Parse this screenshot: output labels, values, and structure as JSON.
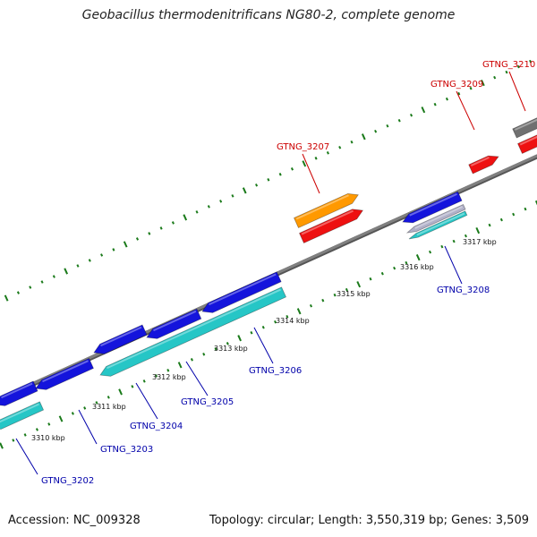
{
  "title": "Geobacillus thermodenitrificans NG80-2, complete genome",
  "footer": {
    "accession": "Accession: NC_009328",
    "summary": "Topology: circular; Length: 3,550,319 bp; Genes: 3,509"
  },
  "colors": {
    "backbone": "#808080",
    "tick": "#1a7a1a",
    "plus_label": "#cc0000",
    "minus_label": "#0000aa",
    "blue": "#1414dc",
    "cyan": "#26c6c6",
    "red": "#ee1111",
    "orange": "#ff9900",
    "gray": "#707070",
    "lightgray": "#b0b0c8"
  },
  "scale": {
    "unit": "kbp",
    "labels": [
      {
        "kbp": 3310,
        "text": "3310 kbp"
      },
      {
        "kbp": 3311,
        "text": "3311 kbp"
      },
      {
        "kbp": 3312,
        "text": "3312 kbp"
      },
      {
        "kbp": 3313,
        "text": "3313 kbp"
      },
      {
        "kbp": 3314,
        "text": "3314 kbp"
      },
      {
        "kbp": 3315,
        "text": "3315 kbp"
      },
      {
        "kbp": 3316,
        "text": "3316 kbp"
      },
      {
        "kbp": 3317,
        "text": "3317 kbp"
      }
    ]
  },
  "genes": [
    {
      "name": "GTNG_3202",
      "strand": "minus"
    },
    {
      "name": "GTNG_3203",
      "strand": "minus"
    },
    {
      "name": "GTNG_3204",
      "strand": "minus"
    },
    {
      "name": "GTNG_3205",
      "strand": "minus"
    },
    {
      "name": "GTNG_3206",
      "strand": "minus"
    },
    {
      "name": "GTNG_3207",
      "strand": "plus"
    },
    {
      "name": "GTNG_3208",
      "strand": "minus"
    },
    {
      "name": "GTNG_3209",
      "strand": "plus"
    },
    {
      "name": "GTNG_3210",
      "strand": "plus"
    }
  ]
}
